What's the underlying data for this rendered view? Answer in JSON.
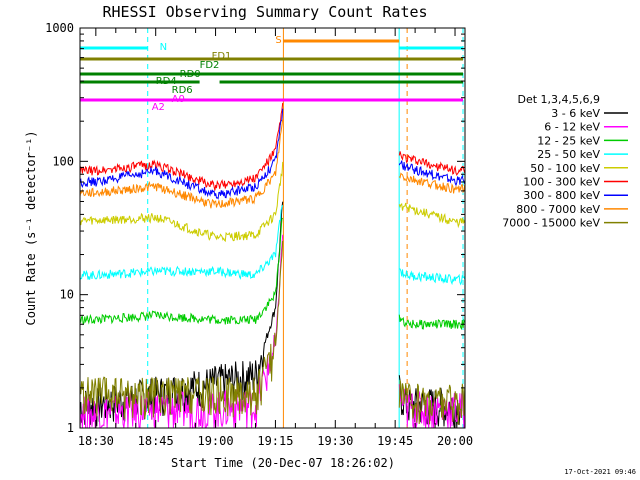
{
  "chart_data": {
    "type": "line",
    "title": "RHESSI Observing Summary Count Rates",
    "xlabel": "Start Time (20-Dec-07 18:26:02)",
    "ylabel": "Count Rate (s⁻¹ detector⁻¹)",
    "y_scale": "log",
    "ylim": [
      1,
      1000
    ],
    "xlim": [
      "18:26:02",
      "20:02:30"
    ],
    "x_ticks": [
      "18:30",
      "18:45",
      "19:00",
      "19:15",
      "19:30",
      "19:45",
      "20:00"
    ],
    "y_ticks": [
      "1",
      "10",
      "100",
      "1000"
    ],
    "grid": false,
    "legend_position": "right",
    "legend_title": "Det 1,3,4,5,6,9",
    "footer_date": "17-Oct-2021 09:46",
    "data_gaps": [
      [
        "19:17",
        "19:46"
      ]
    ],
    "series": [
      {
        "name": "3 - 6 keV",
        "color": "#000000",
        "x": [
          "18:30",
          "18:45",
          "19:00",
          "19:10",
          "19:15",
          "19:17",
          "19:48",
          "20:00"
        ],
        "y": [
          1.5,
          1.8,
          2.2,
          2.5,
          8,
          60,
          1.5,
          1.5
        ]
      },
      {
        "name": "6 - 12 keV",
        "color": "#ff00ff",
        "x": [
          "18:30",
          "18:45",
          "19:00",
          "19:10",
          "19:15",
          "19:17",
          "19:48",
          "20:00"
        ],
        "y": [
          1.3,
          1.4,
          1.4,
          1.5,
          4,
          35,
          1.4,
          1.4
        ]
      },
      {
        "name": "12 - 25 keV",
        "color": "#00cc00",
        "x": [
          "18:30",
          "18:45",
          "19:00",
          "19:10",
          "19:15",
          "19:17",
          "19:48",
          "20:00"
        ],
        "y": [
          6.5,
          7,
          6.5,
          6.5,
          10,
          45,
          6,
          6
        ]
      },
      {
        "name": "25 - 50 keV",
        "color": "#00ffff",
        "x": [
          "18:30",
          "18:45",
          "19:00",
          "19:10",
          "19:15",
          "19:17",
          "19:48",
          "20:00"
        ],
        "y": [
          14,
          15,
          15,
          14,
          20,
          55,
          14,
          13
        ]
      },
      {
        "name": "50 - 100 keV",
        "color": "#cccc00",
        "x": [
          "18:30",
          "18:45",
          "19:00",
          "19:10",
          "19:15",
          "19:17",
          "19:48",
          "20:00"
        ],
        "y": [
          36,
          38,
          27,
          28,
          40,
          100,
          45,
          35
        ]
      },
      {
        "name": "100 - 300 keV",
        "color": "#ff0000",
        "x": [
          "18:30",
          "18:45",
          "19:00",
          "19:10",
          "19:15",
          "19:17",
          "19:48",
          "20:00"
        ],
        "y": [
          85,
          95,
          65,
          75,
          120,
          280,
          105,
          85
        ]
      },
      {
        "name": "300 - 800 keV",
        "color": "#0000ff",
        "x": [
          "18:30",
          "18:45",
          "19:00",
          "19:10",
          "19:15",
          "19:17",
          "19:48",
          "20:00"
        ],
        "y": [
          70,
          85,
          55,
          65,
          100,
          260,
          90,
          72
        ]
      },
      {
        "name": "800 - 7000 keV",
        "color": "#ff8800",
        "x": [
          "18:30",
          "18:45",
          "19:00",
          "19:10",
          "19:15",
          "19:17",
          "19:48",
          "20:00"
        ],
        "y": [
          58,
          65,
          47,
          53,
          80,
          220,
          75,
          62
        ]
      },
      {
        "name": "7000 - 15000 keV",
        "color": "#808000",
        "x": [
          "18:30",
          "18:45",
          "19:00",
          "19:10",
          "19:15",
          "19:17",
          "19:48",
          "20:00"
        ],
        "y": [
          1.8,
          1.8,
          1.8,
          1.8,
          4,
          30,
          1.6,
          1.6
        ]
      }
    ],
    "flag_bars": [
      {
        "label": "N",
        "color": "#00ffff",
        "segments": [
          [
            "18:26:02",
            "18:43"
          ],
          [
            "19:46",
            "20:02"
          ]
        ]
      },
      {
        "label": "S",
        "color": "#ff8800",
        "segments": [
          [
            "19:17",
            "19:46"
          ]
        ]
      },
      {
        "label": "FD1",
        "color": "#808000",
        "segments": [
          [
            "18:26:02",
            "20:02"
          ]
        ]
      },
      {
        "label": "FD2",
        "color": "#008000",
        "segments": [
          [
            "18:26:02",
            "20:02"
          ]
        ]
      },
      {
        "label": "RD0",
        "color": "#008000",
        "segments": [
          [
            "18:26:02",
            "20:02"
          ]
        ]
      },
      {
        "label": "RD4",
        "color": "#008000",
        "segments": [
          [
            "18:26:02",
            "18:47"
          ],
          [
            "19:01",
            "20:02"
          ]
        ]
      },
      {
        "label": "RD6",
        "color": "#008000",
        "segments": [
          [
            "18:47",
            "18:56"
          ]
        ]
      },
      {
        "label": "A2",
        "color": "#ff00ff",
        "segments": [
          [
            "18:26:02",
            "20:02"
          ]
        ]
      },
      {
        "label": "A0",
        "color": "#ff00ff",
        "segments": [
          [
            "18:26:02",
            "20:02"
          ]
        ]
      }
    ],
    "vertical_markers": [
      {
        "x": "18:26:02",
        "color": "#00ffff",
        "style": "solid"
      },
      {
        "x": "18:43",
        "color": "#00ffff",
        "style": "dashed"
      },
      {
        "x": "19:17",
        "color": "#ff8800",
        "style": "solid"
      },
      {
        "x": "19:46",
        "color": "#00ffff",
        "style": "solid"
      },
      {
        "x": "19:48",
        "color": "#ff8800",
        "style": "dashed"
      },
      {
        "x": "20:02",
        "color": "#00ffff",
        "style": "dashed"
      }
    ]
  }
}
